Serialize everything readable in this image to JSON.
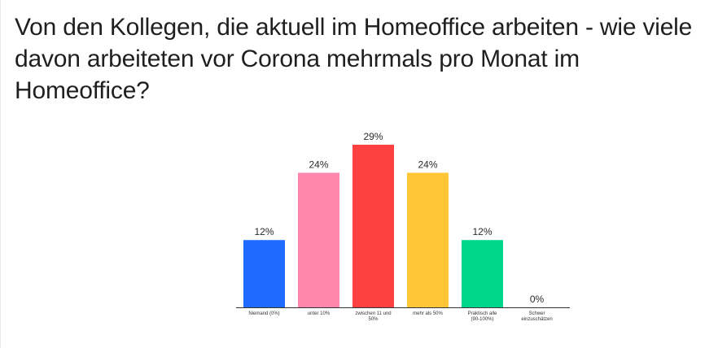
{
  "question": "Von den Kollegen, die aktuell im Homeoffice arbeiten - wie viele davon arbeiteten vor Corona mehrmals pro Monat im Homeoffice?",
  "chart_data": {
    "type": "bar",
    "title": "Von den Kollegen, die aktuell im Homeoffice arbeiten - wie viele davon arbeiteten vor Corona mehrmals pro Monat im Homeoffice?",
    "categories": [
      [
        "Niemand (0%)"
      ],
      [
        "unter 10%"
      ],
      [
        "zwischen 11 und",
        "50%"
      ],
      [
        "mehr als 50%"
      ],
      [
        "Praktisch alle",
        "(90-100%)"
      ],
      [
        "Schwer",
        "einzuschätzen"
      ]
    ],
    "values": [
      12,
      24,
      29,
      24,
      12,
      0
    ],
    "value_labels": [
      "12%",
      "24%",
      "29%",
      "24%",
      "12%",
      "0%"
    ],
    "colors": [
      "#1f6bff",
      "#ff86ad",
      "#ff4040",
      "#ffc637",
      "#00d68a",
      "#bbbbbb"
    ],
    "xlabel": "",
    "ylabel": "",
    "ylim": [
      0,
      29
    ],
    "grid": false,
    "legend": "none"
  }
}
